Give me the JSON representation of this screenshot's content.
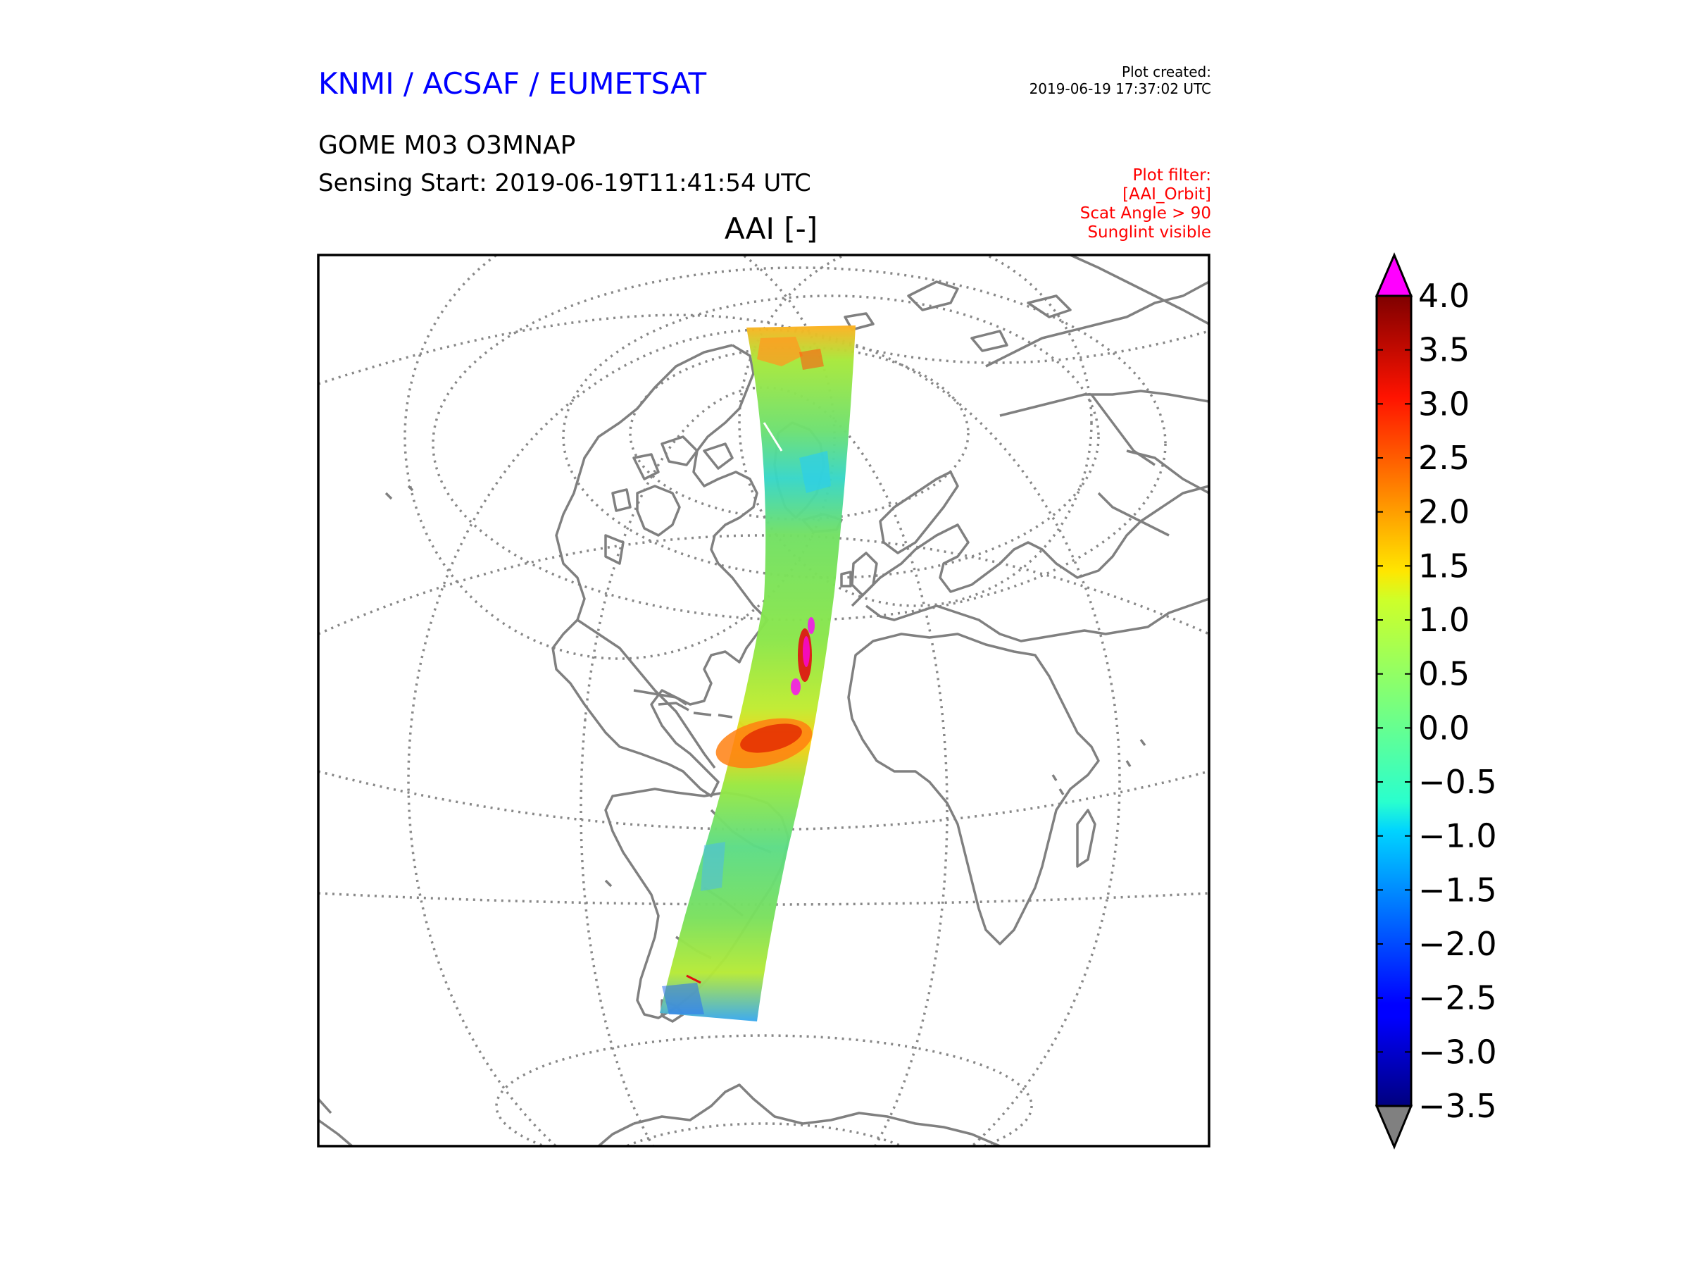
{
  "header": {
    "brand": "KNMI / ACSAF / EUMETSAT",
    "product": "GOME M03 O3MNAP",
    "sensing_start": "Sensing Start: 2019-06-19T11:41:54 UTC",
    "plot_created_label": "Plot created:",
    "plot_created_time": "2019-06-19 17:37:02 UTC",
    "filter_lines": [
      "Plot filter:",
      "[AAI_Orbit]",
      "Scat Angle > 90",
      "Sunglint visible"
    ]
  },
  "map": {
    "title": "AAI [-]",
    "variable": "AAI",
    "units": "-",
    "projection": "orthographic",
    "features": {
      "swath": "satellite orbit swath",
      "dust_plume": "high AAI plume over tropical Atlantic",
      "coastlines": "coastlines",
      "graticule": "dotted graticule"
    }
  },
  "colors": {
    "brand": "#0000ff",
    "filter": "#ff0000",
    "coastline": "#808080",
    "graticule": "#888888",
    "over": "#ff00ff",
    "under": "#808080"
  },
  "chart_data": {
    "type": "heatmap",
    "title": "AAI [-]",
    "colormap": "jet",
    "range": [
      -3.5,
      4.0
    ],
    "extend": "both",
    "ticks": [
      "4.0",
      "3.5",
      "3.0",
      "2.5",
      "2.0",
      "1.5",
      "1.0",
      "0.5",
      "0.0",
      "−0.5",
      "−1.0",
      "−1.5",
      "−2.0",
      "−2.5",
      "−3.0",
      "−3.5"
    ],
    "tick_values": [
      4.0,
      3.5,
      3.0,
      2.5,
      2.0,
      1.5,
      1.0,
      0.5,
      0.0,
      -0.5,
      -1.0,
      -1.5,
      -2.0,
      -2.5,
      -3.0,
      -3.5
    ]
  }
}
